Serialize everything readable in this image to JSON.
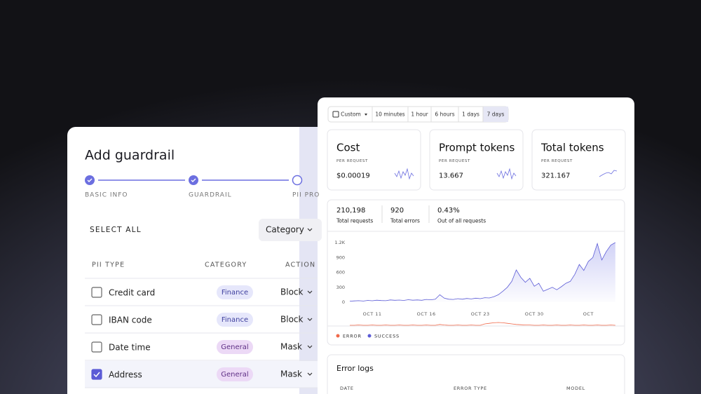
{
  "left": {
    "title": "Add guardrail",
    "steps": [
      "BASIC INFO",
      "GUARDRAIL",
      "PII PRO"
    ],
    "select_all": "SELECT ALL",
    "category_button": "Category",
    "table": {
      "headers": [
        "PII TYPE",
        "CATEGORY",
        "ACTION"
      ],
      "rows": [
        [
          "Credit card",
          "Finance",
          "Block"
        ],
        [
          "IBAN code",
          "Finance",
          "Block"
        ],
        [
          "Date time",
          "General",
          "Mask"
        ],
        [
          "Address",
          "General",
          "Mask"
        ]
      ]
    }
  },
  "right": {
    "time_filters": [
      "Custom",
      "10 minutes",
      "1 hour",
      "6 hours",
      "1 days",
      "7 days"
    ],
    "cards": [
      {
        "title": "Cost",
        "sub": "PER REQUEST",
        "value": "$0.00019"
      },
      {
        "title": "Prompt tokens",
        "sub": "PER REQUEST",
        "value": "13.667"
      },
      {
        "title": "Total tokens",
        "sub": "PER REQUEST",
        "value": "321.167"
      }
    ],
    "stats": [
      {
        "value": "210,198",
        "label": "Total requests"
      },
      {
        "value": "920",
        "label": "Total errors"
      },
      {
        "value": "0.43%",
        "label": "Out of all requests"
      }
    ],
    "error_logs": {
      "title": "Error logs",
      "headers": [
        "DATE",
        "ERROR TYPE",
        "MODEL"
      ]
    }
  },
  "chart_data": {
    "type": "area",
    "categories": [
      null,
      null,
      null,
      null,
      null,
      "OCT 11",
      null,
      null,
      null,
      null,
      null,
      null,
      null,
      null,
      null,
      null,
      null,
      "OCT 16",
      null,
      null,
      null,
      null,
      null,
      null,
      null,
      null,
      null,
      null,
      null,
      "OCT 23",
      null,
      null,
      null,
      null,
      null,
      null,
      null,
      null,
      null,
      null,
      null,
      "OCT 30",
      null,
      null,
      null,
      null,
      null,
      null,
      null,
      null,
      null,
      null,
      null,
      "OCT",
      null,
      null,
      null,
      null,
      null,
      null
    ],
    "series": [
      {
        "name": "ERROR",
        "color": "#f0694a",
        "axis": "y2",
        "values": [
          5,
          5,
          6,
          5,
          5,
          6,
          5,
          5,
          6,
          5,
          5,
          6,
          5,
          5,
          6,
          5,
          5,
          6,
          5,
          5,
          8,
          6,
          5,
          5,
          6,
          5,
          5,
          6,
          5,
          5,
          10,
          12,
          14,
          15,
          14,
          12,
          10,
          8,
          7,
          6,
          6,
          5,
          5,
          6,
          5,
          5,
          6,
          5,
          5,
          6,
          5,
          5,
          6,
          5,
          5,
          6,
          5,
          5,
          6,
          5
        ]
      },
      {
        "name": "SUCCESS",
        "color": "#5b5bd6",
        "values": [
          20,
          25,
          30,
          22,
          35,
          28,
          40,
          32,
          30,
          45,
          38,
          42,
          35,
          50,
          40,
          45,
          38,
          55,
          48,
          60,
          150,
          80,
          60,
          55,
          70,
          60,
          75,
          65,
          80,
          70,
          90,
          85,
          110,
          150,
          220,
          300,
          420,
          650,
          500,
          400,
          480,
          320,
          380,
          220,
          260,
          300,
          250,
          310,
          380,
          420,
          560,
          760,
          640,
          820,
          900,
          1180,
          850,
          1020,
          1150,
          1200
        ]
      }
    ],
    "ylim": [
      0,
      1200
    ],
    "yticks": [
      0,
      300,
      600,
      900,
      {
        "value": 1200,
        "label": "1.2K"
      }
    ],
    "y2lim": [
      0,
      100
    ],
    "grid": false,
    "legend": "bottom"
  }
}
